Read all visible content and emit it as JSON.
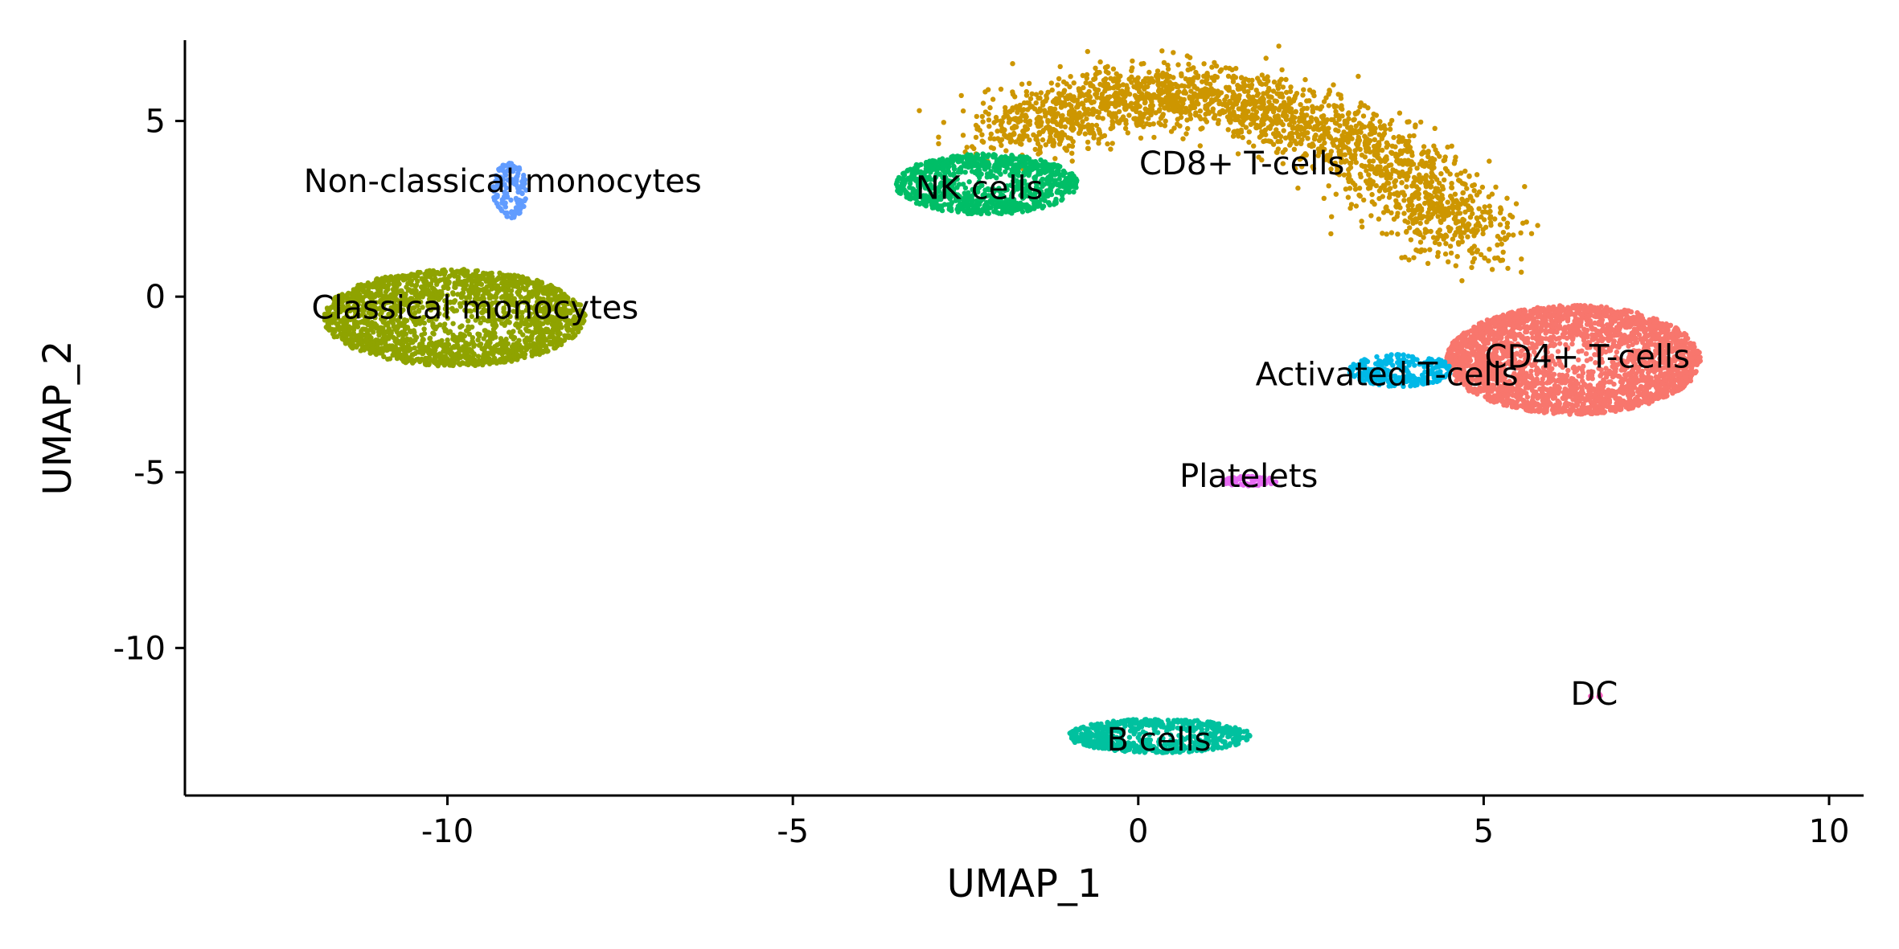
{
  "chart_data": {
    "type": "scatter",
    "title": "",
    "xlabel": "UMAP_1",
    "ylabel": "UMAP_2",
    "xlim": [
      -13.8,
      10.5
    ],
    "ylim": [
      -14.2,
      7.3
    ],
    "xticks": [
      -10,
      -5,
      0,
      5,
      10
    ],
    "yticks": [
      5,
      0,
      -5,
      -10
    ],
    "xtick_labels": [
      "-10",
      "-5",
      "0",
      "5",
      "10"
    ],
    "ytick_labels": [
      "5",
      "0",
      "-5",
      "-10"
    ],
    "grid": false,
    "legend": "none",
    "clusters": [
      {
        "label": "CD4+ T-cells",
        "color": "#F8766D",
        "label_pos": [
          6.5,
          -1.7
        ],
        "center": [
          6.3,
          -1.8
        ],
        "spread": [
          1.6,
          1.35
        ],
        "count": 2600
      },
      {
        "label": "CD8+ T-cells",
        "color": "#CD9600",
        "label_pos": [
          1.5,
          3.8
        ],
        "arc": [
          [
            -2.0,
            4.5
          ],
          [
            -0.5,
            5.6
          ],
          [
            1.0,
            5.8
          ],
          [
            2.5,
            5.0
          ],
          [
            3.8,
            3.5
          ],
          [
            4.8,
            1.5
          ]
        ],
        "width": 1.05,
        "count": 2200
      },
      {
        "label": "NK cells",
        "color": "#00BE67",
        "label_pos": [
          -2.3,
          3.1
        ],
        "center": [
          -2.2,
          3.2
        ],
        "spread": [
          1.15,
          0.75
        ],
        "count": 900
      },
      {
        "label": "Classical monocytes",
        "color": "#8FA300",
        "label_pos": [
          -9.6,
          -0.3
        ],
        "center": [
          -9.9,
          -0.6
        ],
        "spread": [
          1.65,
          1.2
        ],
        "count": 2000
      },
      {
        "label": "Non-classical monocytes",
        "color": "#619CFF",
        "label_pos": [
          -9.2,
          3.3
        ],
        "center": [
          -9.1,
          3.0
        ],
        "spread": [
          0.22,
          0.7
        ],
        "count": 130
      },
      {
        "label": "Activated T-cells",
        "color": "#00B8E7",
        "label_pos": [
          3.6,
          -2.2
        ],
        "center": [
          3.8,
          -2.1
        ],
        "spread": [
          0.65,
          0.4
        ],
        "count": 260
      },
      {
        "label": "Platelets",
        "color": "#E76BF3",
        "label_pos": [
          1.6,
          -5.1
        ],
        "center": [
          1.6,
          -5.25
        ],
        "spread": [
          0.35,
          0.12
        ],
        "count": 70
      },
      {
        "label": "B cells",
        "color": "#00C19F",
        "label_pos": [
          0.3,
          -12.6
        ],
        "center": [
          0.3,
          -12.5
        ],
        "spread": [
          1.15,
          0.42
        ],
        "count": 620
      },
      {
        "label": "DC",
        "color": "#FF61C3",
        "label_pos": [
          6.6,
          -11.3
        ],
        "center": [
          6.6,
          -11.35
        ],
        "spread": [
          0.08,
          0.05
        ],
        "count": 6
      }
    ]
  }
}
